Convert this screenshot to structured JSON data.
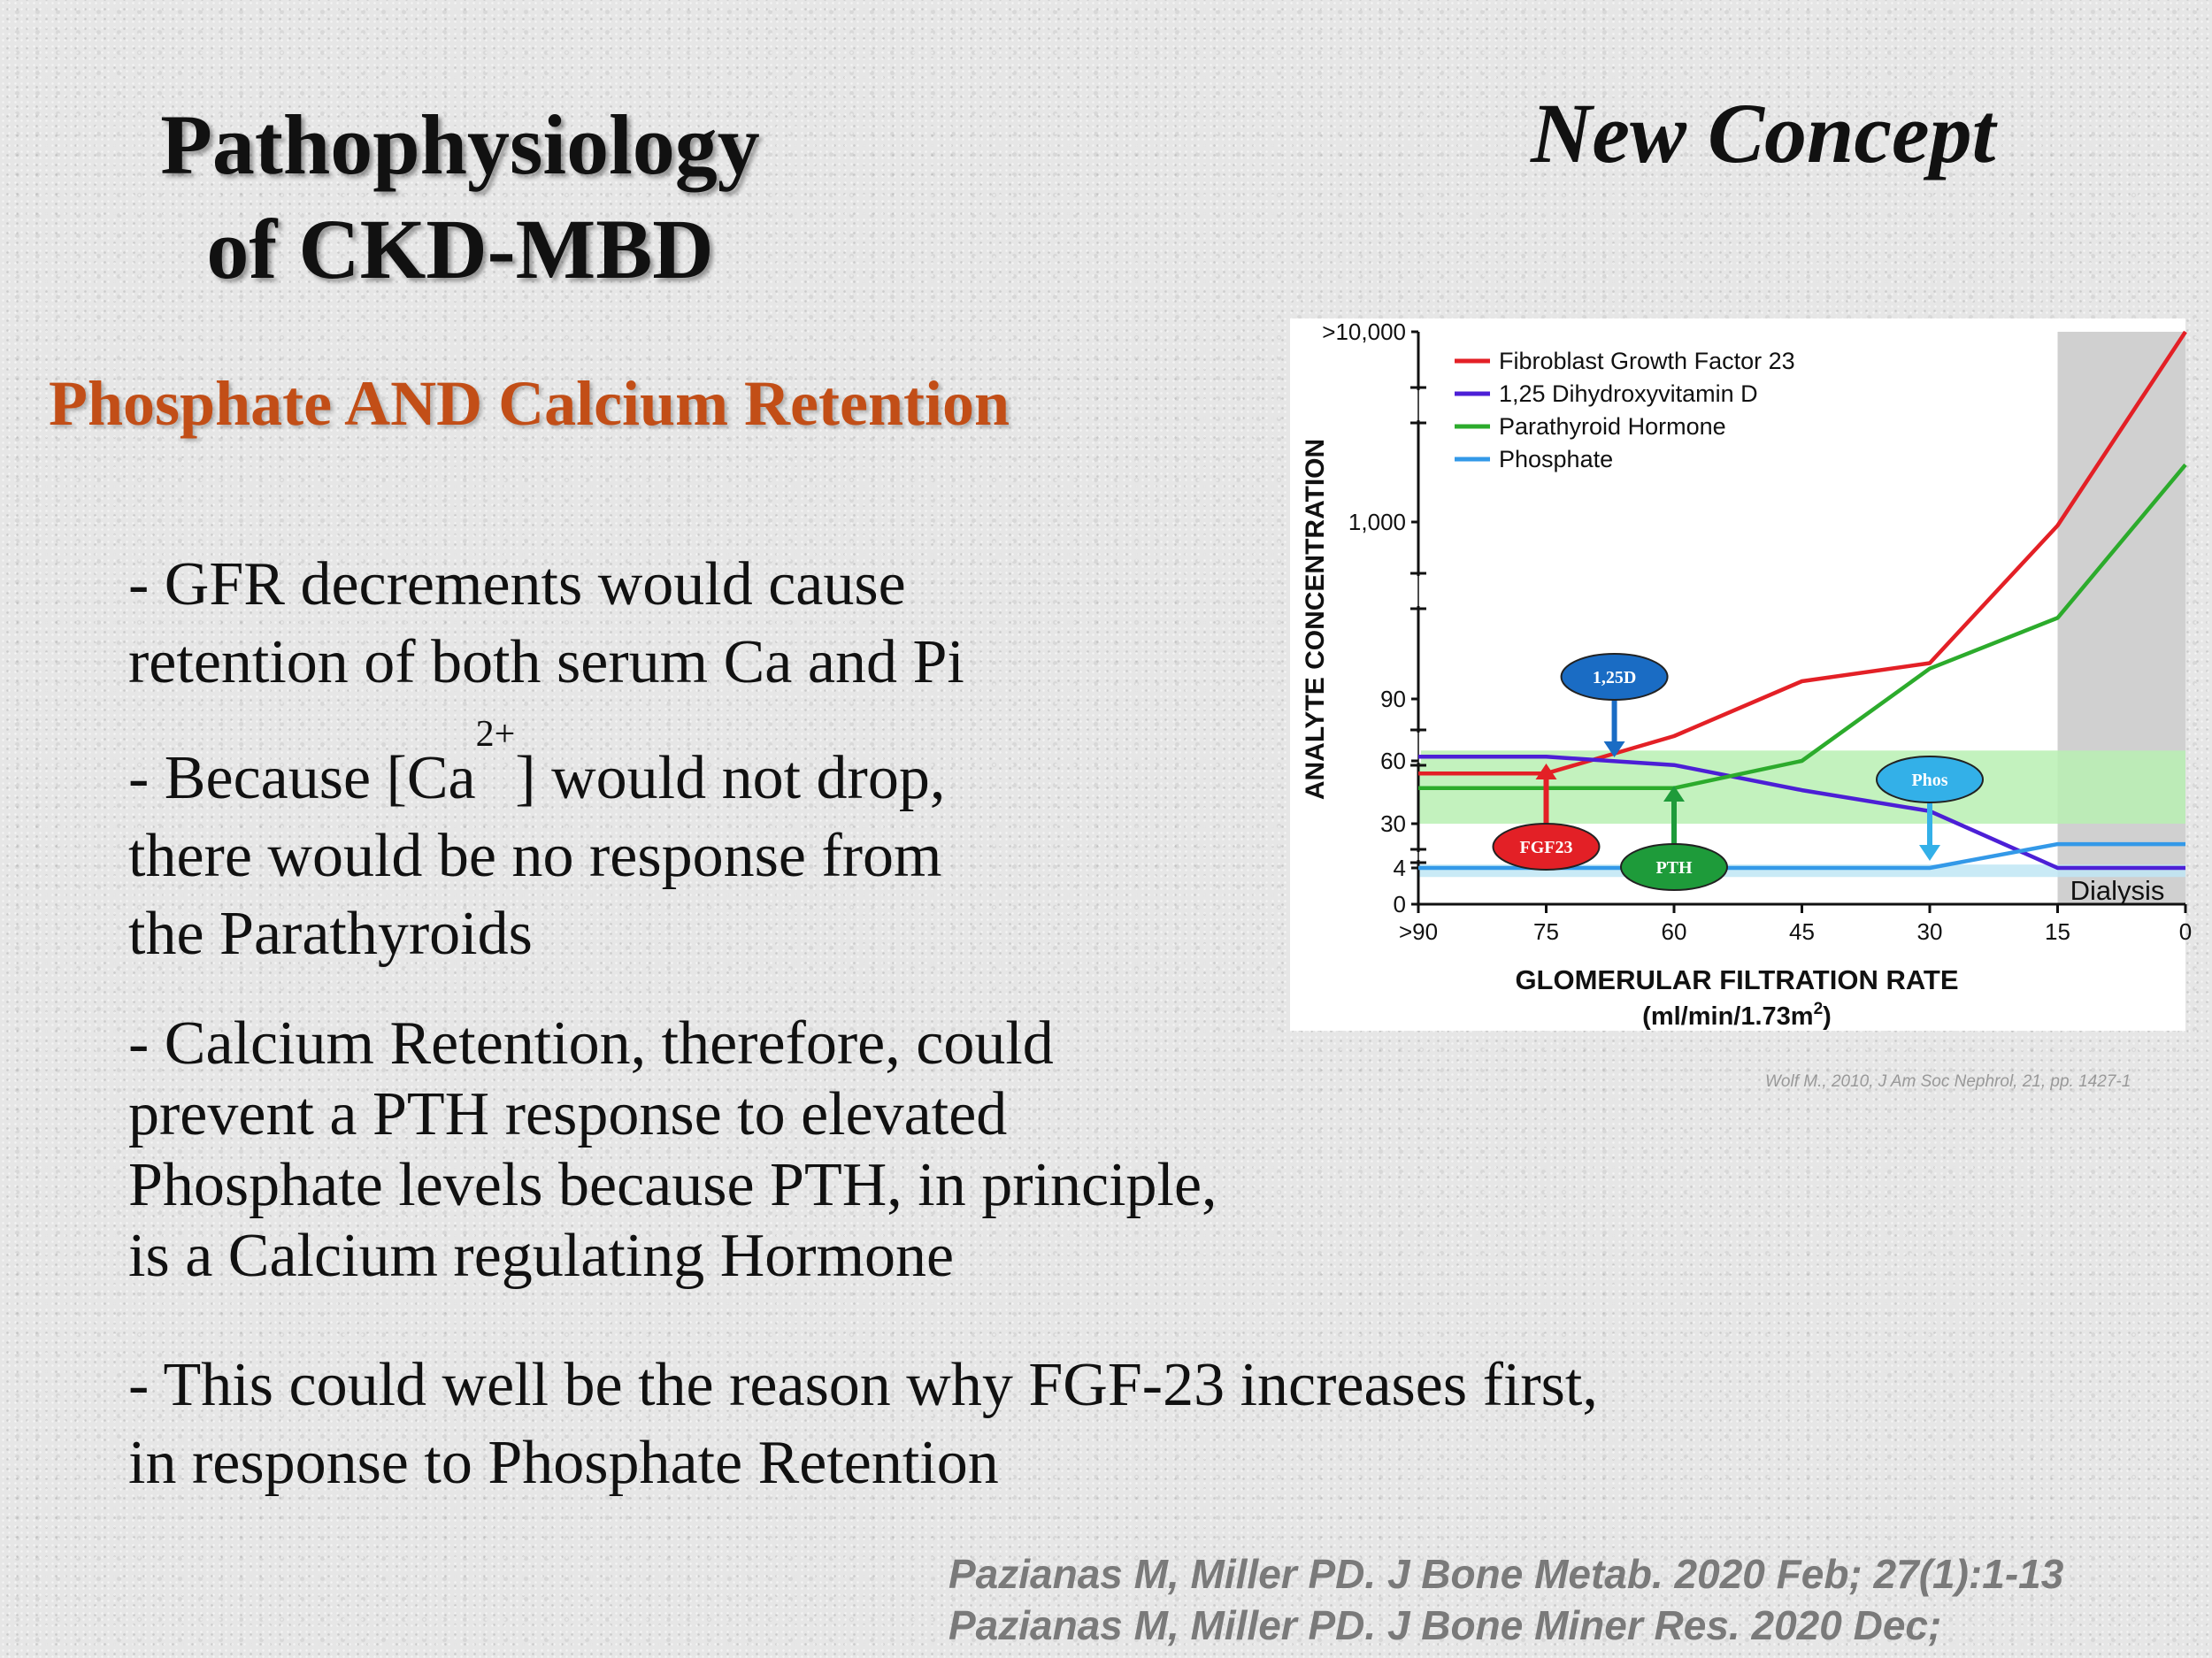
{
  "slide": {
    "title_line1": "Pathophysiology",
    "title_line2": "of CKD-MBD",
    "concept": "New Concept",
    "subtitle": "Phosphate AND Calcium Retention",
    "bullet1_line1": "- GFR decrements would cause",
    "bullet1_line2": "retention of both serum Ca and Pi",
    "bullet2_pre": "- Because [Ca",
    "bullet2_sup": "2+",
    "bullet2_post": "] would not drop,",
    "bullet2_line2": "there would be no response from",
    "bullet2_line3": "the Parathyroids",
    "bullet3_line1": "- Calcium Retention, therefore, could",
    "bullet3_line2": "prevent a PTH response to elevated",
    "bullet3_line3": "Phosphate levels because PTH, in principle,",
    "bullet3_line4": "is a Calcium regulating Hormone",
    "bullet4_line1": "- This could well be the reason why FGF-23 increases first,",
    "bullet4_line2": "in response to Phosphate Retention",
    "chart_source": "Wolf M., 2010, J Am Soc Nephrol, 21, pp. 1427-1",
    "ref1": "Pazianas M, Miller PD. J Bone Metab. 2020 Feb; 27(1):1-13",
    "ref2": "Pazianas M, Miller PD. J Bone Miner Res. 2020 Dec;"
  },
  "chart_data": {
    "type": "line",
    "xlabel": "GLOMERULAR FILTRATION RATE",
    "xlabel_units": "(ml/min/1.73m",
    "xlabel_units_sup": "2",
    "xlabel_units_close": ")",
    "ylabel": "ANALYTE CONCENTRATION",
    "x_tick_labels": [
      ">90",
      "75",
      "60",
      "45",
      "30",
      "15",
      "0"
    ],
    "x_ticks": [
      90,
      75,
      60,
      45,
      30,
      15,
      0
    ],
    "xlim": [
      90,
      0
    ],
    "y_tick_labels": [
      ">10,000",
      "1,000",
      "90",
      "60",
      "30",
      "4",
      "0"
    ],
    "y_ticks": [
      10000,
      1000,
      90,
      60,
      30,
      4,
      0
    ],
    "y_scale": "broken axis",
    "x": [
      90,
      75,
      60,
      45,
      30,
      15,
      0
    ],
    "series": [
      {
        "name": "Fibroblast Growth Factor 23",
        "color": "#e32026",
        "values": [
          54,
          54,
          72,
          100,
          130,
          950,
          10000
        ]
      },
      {
        "name": "1,25 Dihydroxyvitamin D",
        "color": "#4c1fd6",
        "values": [
          62,
          62,
          58,
          46,
          36,
          4,
          4
        ]
      },
      {
        "name": "Parathyroid Hormone",
        "color": "#2cab2c",
        "values": [
          47,
          47,
          47,
          60,
          120,
          250,
          2000
        ]
      },
      {
        "name": "Phosphate",
        "color": "#3399e8",
        "values": [
          4,
          4,
          4,
          4,
          4,
          18,
          18
        ]
      }
    ],
    "normal_ranges": [
      {
        "label": "Parathyroid Hormone",
        "low": 30,
        "high": 65,
        "color": "#b9f0b3"
      },
      {
        "label": "Phosphate",
        "low": 3,
        "high": 6,
        "color": "#bfe6f4"
      }
    ],
    "shaded_region": {
      "label": "Dialysis",
      "x_from": 15,
      "x_to": 0,
      "color": "#d0d0d0"
    },
    "annotations": [
      {
        "label": "1,25D",
        "x": 67,
        "color": "#1a6cc4",
        "direction": "down"
      },
      {
        "label": "FGF23",
        "x": 75,
        "color": "#e32026",
        "direction": "up"
      },
      {
        "label": "PTH",
        "x": 60,
        "color": "#1e9b3a",
        "direction": "up"
      },
      {
        "label": "Phos",
        "x": 30,
        "color": "#33b0e8",
        "direction": "down"
      }
    ],
    "legend_position": "top-left",
    "grid": false
  }
}
